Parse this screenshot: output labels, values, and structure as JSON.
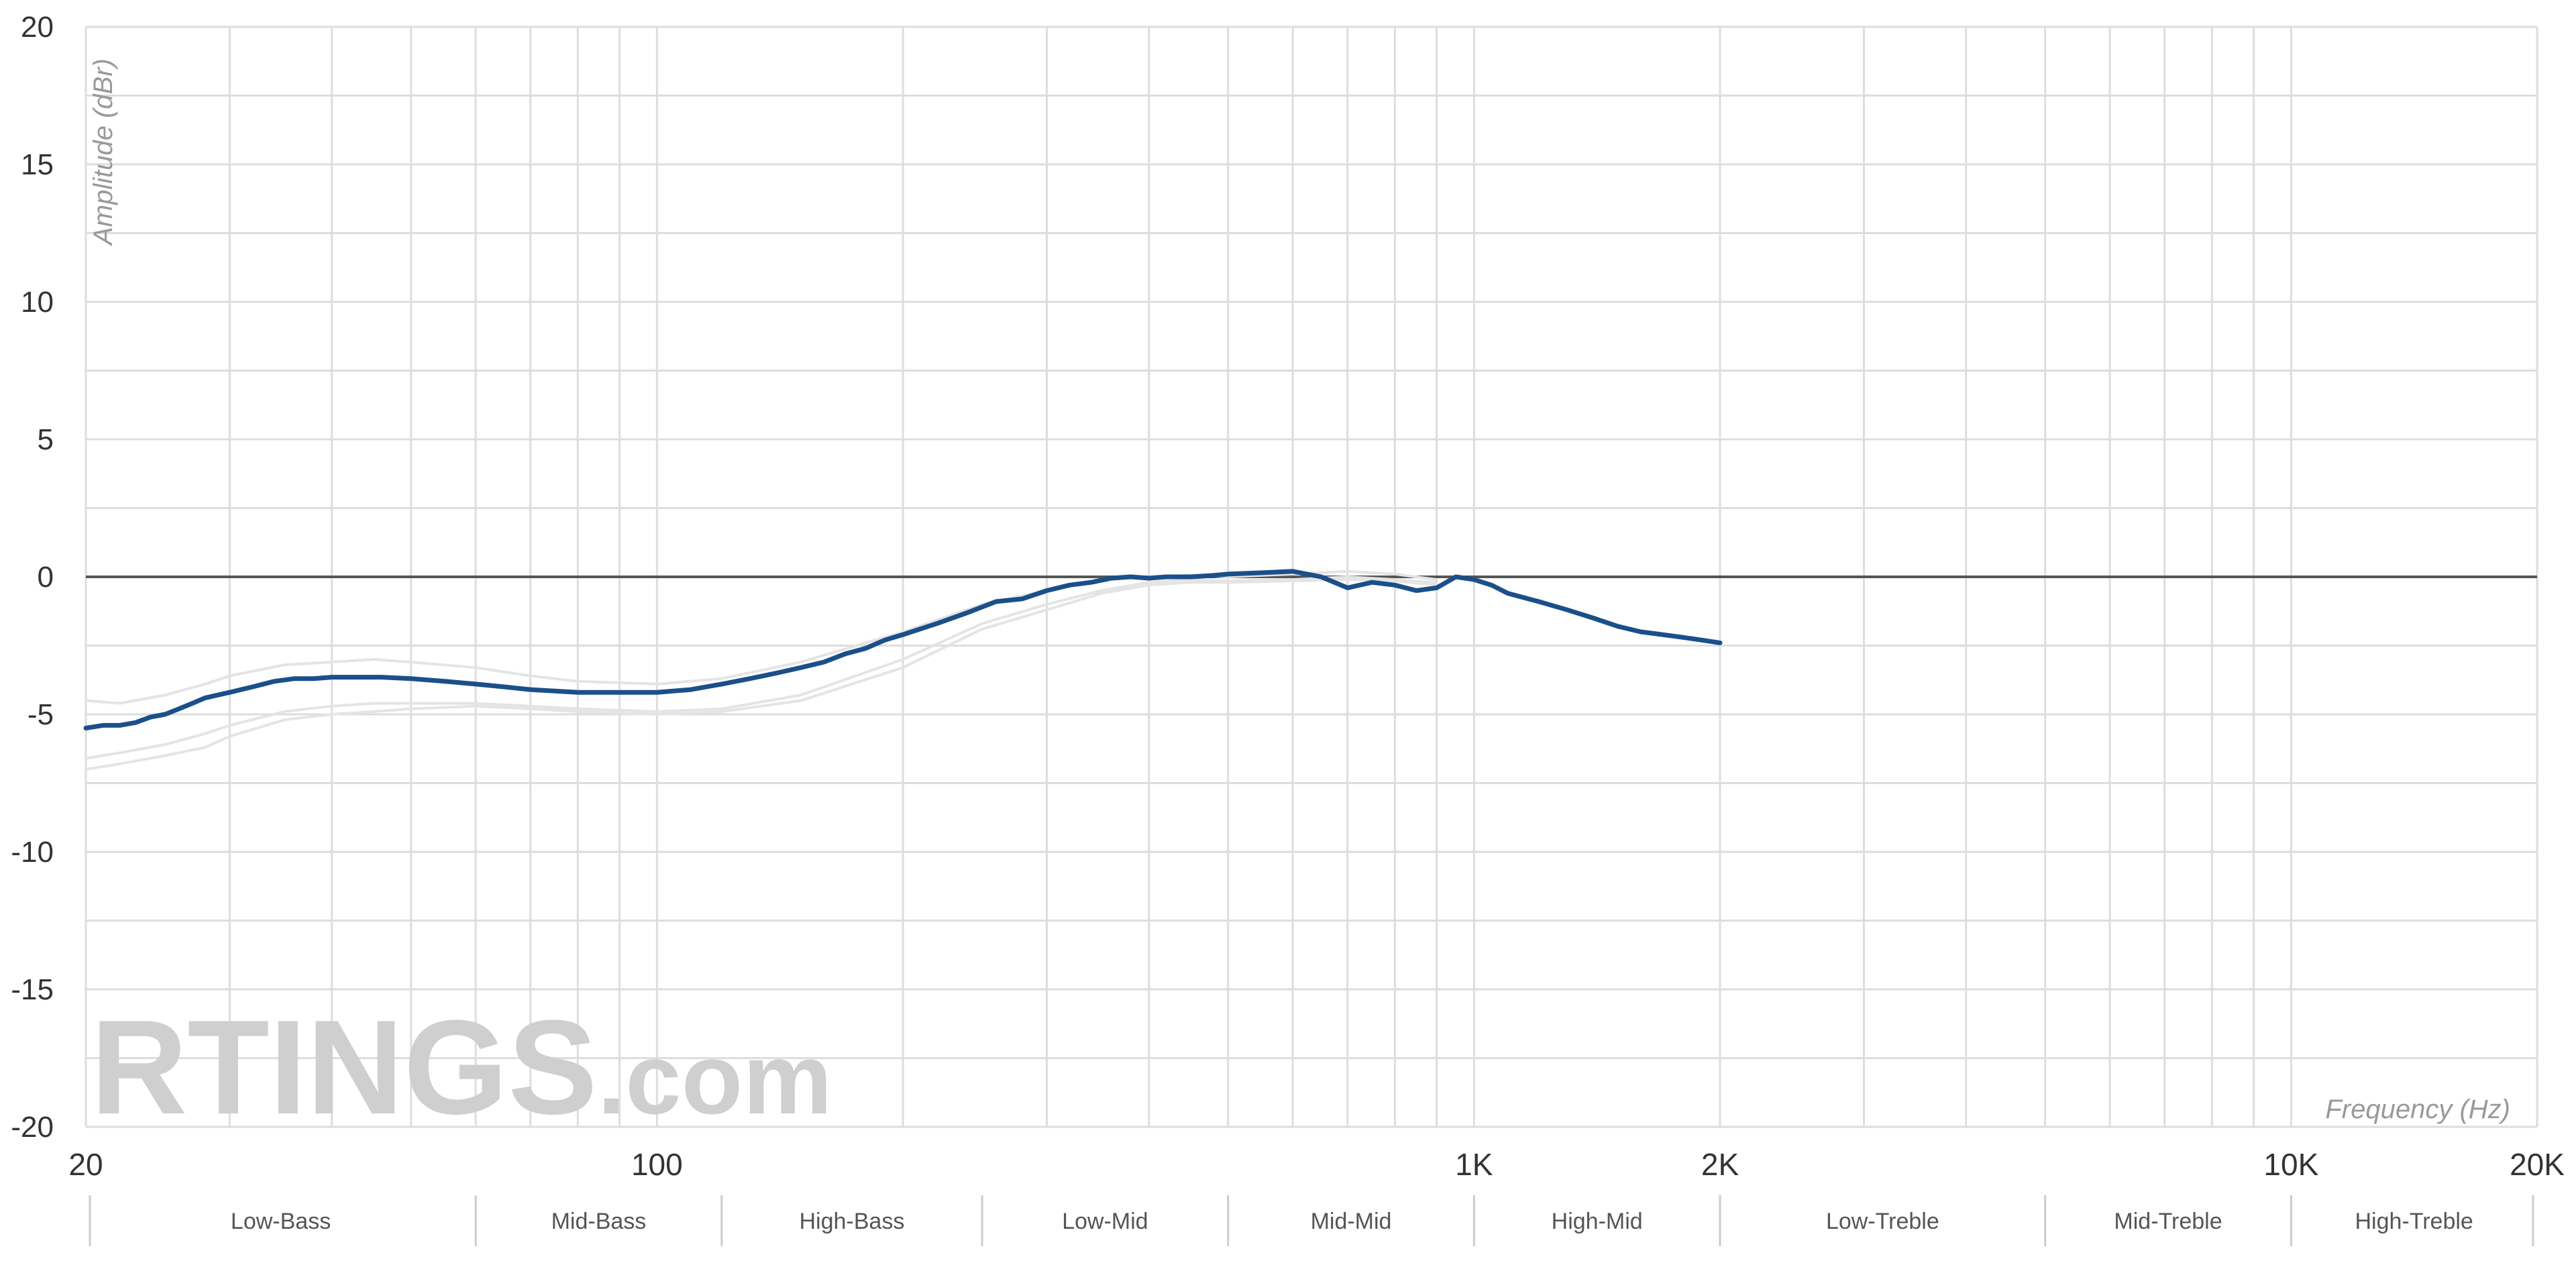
{
  "chart_data": {
    "type": "line",
    "title": "",
    "xlabel": "Frequency (Hz)",
    "ylabel": "Amplitude (dBr)",
    "x_scale": "log",
    "xlim": [
      20,
      20000
    ],
    "ylim": [
      -20,
      20
    ],
    "grid": true,
    "y_ticks": [
      20,
      15,
      10,
      5,
      0,
      -5,
      -10,
      -15,
      -20
    ],
    "y_tick_labels": [
      "20",
      "15",
      "10",
      "5",
      "0",
      "-5",
      "-10",
      "-15",
      "-20"
    ],
    "x_tick_labels": [
      {
        "value": 20,
        "label": "20"
      },
      {
        "value": 100,
        "label": "100"
      },
      {
        "value": 1000,
        "label": "1K"
      },
      {
        "value": 2000,
        "label": "2K"
      },
      {
        "value": 10000,
        "label": "10K"
      },
      {
        "value": 20000,
        "label": "20K"
      }
    ],
    "bands": [
      {
        "label": "Low-Bass",
        "from": 20,
        "to": 60
      },
      {
        "label": "Mid-Bass",
        "from": 60,
        "to": 120
      },
      {
        "label": "High-Bass",
        "from": 120,
        "to": 250
      },
      {
        "label": "Low-Mid",
        "from": 250,
        "to": 500
      },
      {
        "label": "Mid-Mid",
        "from": 500,
        "to": 1000
      },
      {
        "label": "High-Mid",
        "from": 1000,
        "to": 2000
      },
      {
        "label": "Low-Treble",
        "from": 2000,
        "to": 5000
      },
      {
        "label": "Mid-Treble",
        "from": 5000,
        "to": 10000
      },
      {
        "label": "High-Treble",
        "from": 10000,
        "to": 20000
      }
    ],
    "series": [
      {
        "color": "#1b4f8a",
        "x": [
          20,
          21,
          22,
          23,
          24,
          25,
          26,
          27,
          28,
          30,
          32,
          34,
          36,
          38,
          40,
          43,
          46,
          50,
          55,
          60,
          65,
          70,
          75,
          80,
          90,
          100,
          110,
          120,
          130,
          140,
          150,
          160,
          170,
          180,
          190,
          200,
          220,
          240,
          260,
          280,
          300,
          320,
          340,
          360,
          380,
          400,
          420,
          450,
          480,
          500,
          550,
          600,
          650,
          700,
          750,
          800,
          850,
          900,
          950,
          1000,
          1050,
          1100,
          1200,
          1300,
          1400,
          1500,
          1600,
          1700,
          1800,
          1900,
          2000
        ],
        "y": [
          -5.5,
          -5.4,
          -5.4,
          -5.3,
          -5.1,
          -5.0,
          -4.8,
          -4.6,
          -4.4,
          -4.2,
          -4.0,
          -3.8,
          -3.7,
          -3.7,
          -3.65,
          -3.65,
          -3.65,
          -3.7,
          -3.8,
          -3.9,
          -4.0,
          -4.1,
          -4.15,
          -4.2,
          -4.2,
          -4.2,
          -4.1,
          -3.9,
          -3.7,
          -3.5,
          -3.3,
          -3.1,
          -2.8,
          -2.6,
          -2.3,
          -2.1,
          -1.7,
          -1.3,
          -0.9,
          -0.8,
          -0.5,
          -0.3,
          -0.2,
          -0.05,
          0.0,
          -0.05,
          0.0,
          0.0,
          0.05,
          0.1,
          0.15,
          0.2,
          0.0,
          -0.4,
          -0.2,
          -0.3,
          -0.5,
          -0.4,
          0.0,
          -0.1,
          -0.3,
          -0.6,
          -0.9,
          -1.2,
          -1.5,
          -1.8,
          -2.0,
          -2.1,
          -2.2,
          -2.3,
          -2.4
        ]
      }
    ],
    "reference_series": [
      {
        "color": "#e4e4e4",
        "x": [
          20,
          22,
          25,
          28,
          30,
          35,
          40,
          45,
          50,
          60,
          70,
          80,
          100,
          120,
          150,
          200,
          250,
          300,
          350,
          400,
          450,
          500,
          600,
          700,
          800,
          900
        ],
        "y": [
          -4.5,
          -4.6,
          -4.3,
          -3.9,
          -3.6,
          -3.2,
          -3.1,
          -3.0,
          -3.1,
          -3.3,
          -3.6,
          -3.8,
          -3.9,
          -3.7,
          -3.1,
          -2.0,
          -1.0,
          -0.5,
          -0.1,
          0.0,
          0.05,
          0.0,
          0.1,
          0.2,
          0.1,
          -0.1
        ]
      },
      {
        "color": "#e4e4e4",
        "x": [
          20,
          22,
          25,
          28,
          30,
          35,
          40,
          45,
          50,
          60,
          70,
          80,
          100,
          120,
          150,
          200,
          250,
          300,
          350,
          400,
          450,
          500,
          600,
          700,
          800,
          900
        ],
        "y": [
          -6.6,
          -6.4,
          -6.1,
          -5.7,
          -5.4,
          -4.9,
          -4.7,
          -4.6,
          -4.6,
          -4.6,
          -4.7,
          -4.8,
          -4.9,
          -4.8,
          -4.3,
          -3.0,
          -1.7,
          -1.0,
          -0.5,
          -0.2,
          -0.1,
          -0.15,
          -0.1,
          0.0,
          -0.1,
          -0.2
        ]
      },
      {
        "color": "#e4e4e4",
        "x": [
          20,
          22,
          25,
          28,
          30,
          35,
          40,
          45,
          50,
          60,
          70,
          80,
          100,
          120,
          150,
          200,
          250,
          300,
          350,
          400,
          450,
          500,
          600,
          700,
          800,
          900
        ],
        "y": [
          -7.0,
          -6.8,
          -6.5,
          -6.2,
          -5.8,
          -5.2,
          -5.0,
          -4.9,
          -4.8,
          -4.7,
          -4.8,
          -4.9,
          -5.0,
          -4.9,
          -4.5,
          -3.3,
          -1.9,
          -1.2,
          -0.6,
          -0.3,
          -0.2,
          -0.2,
          -0.15,
          -0.1,
          -0.15,
          -0.3
        ]
      }
    ]
  },
  "watermark": {
    "brand": "RTINGS",
    "suffix": ".com"
  }
}
